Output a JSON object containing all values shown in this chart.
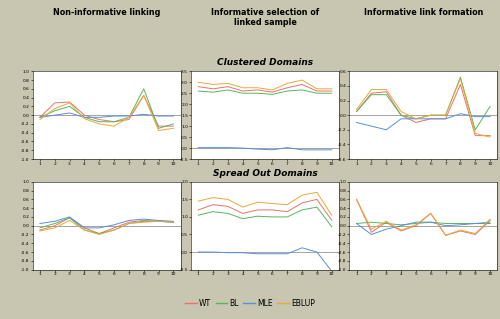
{
  "domains": [
    1,
    2,
    3,
    4,
    5,
    6,
    7,
    8,
    9,
    10
  ],
  "colors": {
    "WT": "#e8736b",
    "BL": "#5ab55a",
    "MLE": "#5b8ed6",
    "EBLUP": "#e8a83a"
  },
  "col_titles": [
    "Non-informative linking",
    "Informative selection of\nlinked sample",
    "Informative link formation"
  ],
  "row_titles": [
    "Clustered Domains",
    "Spread Out Domains"
  ],
  "background_color": "#c8c5b0",
  "band_color": "#f5c200",
  "panel_bg": "#ffffff",
  "series": {
    "clustered_noninf": {
      "WT": [
        -0.05,
        0.28,
        0.3,
        0.0,
        -0.1,
        -0.15,
        -0.1,
        0.45,
        -0.25,
        -0.25
      ],
      "BL": [
        -0.05,
        0.1,
        0.2,
        -0.05,
        -0.15,
        -0.15,
        -0.05,
        0.6,
        -0.3,
        -0.2
      ],
      "MLE": [
        -0.05,
        0.0,
        0.05,
        -0.05,
        -0.05,
        -0.02,
        -0.02,
        0.02,
        -0.02,
        -0.02
      ],
      "EBLUP": [
        -0.1,
        0.15,
        0.28,
        -0.08,
        -0.2,
        -0.25,
        -0.05,
        0.45,
        -0.35,
        -0.3
      ]
    },
    "clustered_inf_sel": {
      "WT": [
        2.8,
        2.7,
        2.8,
        2.6,
        2.65,
        2.55,
        2.75,
        2.9,
        2.6,
        2.6
      ],
      "BL": [
        2.6,
        2.55,
        2.65,
        2.5,
        2.5,
        2.45,
        2.6,
        2.65,
        2.5,
        2.5
      ],
      "MLE": [
        0.02,
        0.02,
        0.02,
        0.0,
        -0.05,
        -0.08,
        0.02,
        -0.08,
        -0.08,
        -0.08
      ],
      "EBLUP": [
        3.0,
        2.9,
        2.95,
        2.75,
        2.75,
        2.65,
        2.95,
        3.1,
        2.7,
        2.7
      ]
    },
    "clustered_inf_link": {
      "WT": [
        0.05,
        0.3,
        0.32,
        0.0,
        -0.1,
        -0.05,
        -0.05,
        0.42,
        -0.28,
        -0.28
      ],
      "BL": [
        0.05,
        0.28,
        0.28,
        0.0,
        -0.05,
        0.0,
        0.0,
        0.52,
        -0.2,
        0.12
      ],
      "MLE": [
        -0.1,
        -0.15,
        -0.2,
        -0.05,
        -0.05,
        -0.05,
        -0.05,
        0.02,
        -0.02,
        -0.02
      ],
      "EBLUP": [
        0.08,
        0.35,
        0.35,
        0.05,
        -0.05,
        0.0,
        0.0,
        0.5,
        -0.25,
        -0.3
      ]
    },
    "spread_noninf": {
      "WT": [
        -0.1,
        0.0,
        0.18,
        -0.05,
        -0.18,
        -0.05,
        0.08,
        0.12,
        0.1,
        0.08
      ],
      "BL": [
        -0.05,
        0.05,
        0.18,
        -0.1,
        -0.18,
        -0.1,
        0.05,
        0.1,
        0.1,
        0.08
      ],
      "MLE": [
        0.05,
        0.1,
        0.2,
        -0.05,
        -0.05,
        0.02,
        0.12,
        0.15,
        0.12,
        0.1
      ],
      "EBLUP": [
        -0.12,
        -0.05,
        0.12,
        -0.1,
        -0.2,
        -0.1,
        0.05,
        0.08,
        0.1,
        0.08
      ]
    },
    "spread_inf_sel": {
      "WT": [
        1.2,
        1.35,
        1.3,
        1.1,
        1.2,
        1.2,
        1.15,
        1.4,
        1.5,
        0.9
      ],
      "BL": [
        1.05,
        1.15,
        1.1,
        0.95,
        1.02,
        1.0,
        1.0,
        1.2,
        1.28,
        0.72
      ],
      "MLE": [
        0.0,
        0.0,
        -0.02,
        -0.02,
        -0.05,
        -0.05,
        -0.05,
        0.12,
        0.0,
        -0.55
      ],
      "EBLUP": [
        1.45,
        1.55,
        1.5,
        1.28,
        1.42,
        1.38,
        1.35,
        1.62,
        1.7,
        1.05
      ]
    },
    "spread_inf_link": {
      "WT": [
        0.6,
        -0.15,
        0.08,
        -0.12,
        0.0,
        0.28,
        -0.22,
        -0.12,
        -0.2,
        0.12
      ],
      "BL": [
        0.05,
        0.08,
        0.05,
        0.02,
        0.05,
        0.08,
        0.05,
        0.05,
        0.05,
        0.08
      ],
      "MLE": [
        0.05,
        -0.2,
        -0.08,
        0.0,
        0.08,
        0.08,
        0.0,
        0.02,
        0.05,
        0.05
      ],
      "EBLUP": [
        0.6,
        -0.08,
        0.1,
        -0.1,
        0.02,
        0.28,
        -0.22,
        -0.1,
        -0.18,
        0.15
      ]
    }
  },
  "ylims": {
    "clustered_noninf": [
      -1.0,
      1.0
    ],
    "clustered_inf_sel": [
      -0.5,
      3.5
    ],
    "clustered_inf_link": [
      -0.6,
      0.6
    ],
    "spread_noninf": [
      -1.0,
      1.0
    ],
    "spread_inf_sel": [
      -0.5,
      2.0
    ],
    "spread_inf_link": [
      -1.0,
      1.0
    ]
  },
  "yticks": {
    "clustered_noninf": [
      -1.0,
      -0.8,
      -0.6,
      -0.4,
      -0.2,
      0.0,
      0.2,
      0.4,
      0.6,
      0.8,
      1.0
    ],
    "clustered_inf_sel": [
      -0.5,
      0.0,
      0.5,
      1.0,
      1.5,
      2.0,
      2.5,
      3.0,
      3.5
    ],
    "clustered_inf_link": [
      -0.6,
      -0.4,
      -0.2,
      0.0,
      0.2,
      0.4,
      0.6
    ],
    "spread_noninf": [
      -1.0,
      -0.8,
      -0.6,
      -0.4,
      -0.2,
      0.0,
      0.2,
      0.4,
      0.6,
      0.8,
      1.0
    ],
    "spread_inf_sel": [
      -0.5,
      0.0,
      0.5,
      1.0,
      1.5,
      2.0
    ],
    "spread_inf_link": [
      -1.0,
      -0.8,
      -0.6,
      -0.4,
      -0.2,
      0.0,
      0.2,
      0.4,
      0.6,
      0.8,
      1.0
    ]
  }
}
